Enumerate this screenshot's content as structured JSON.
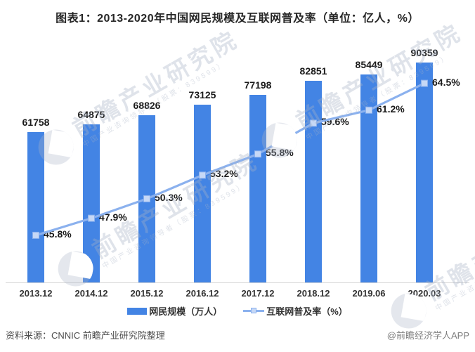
{
  "chart_data": {
    "type": "combo",
    "title": "图表1：2013-2020年中国网民规模及互联网普及率（单位：亿人，%）",
    "categories": [
      "2013.12",
      "2014.12",
      "2015.12",
      "2016.12",
      "2017.12",
      "2018.12",
      "2019.06",
      "2020.03"
    ],
    "series": [
      {
        "name": "网民规模（万人）",
        "type": "bar",
        "values": [
          61758,
          64875,
          68826,
          73125,
          77198,
          82851,
          85449,
          90359
        ],
        "color": "#4384e4"
      },
      {
        "name": "互联网普及率（%）",
        "type": "line",
        "values": [
          45.8,
          47.9,
          50.3,
          53.2,
          55.8,
          59.6,
          61.2,
          64.5
        ],
        "value_suffix": "%",
        "color": "#8bb1ee",
        "marker": "square",
        "marker_fill": "#c6d8f6"
      }
    ],
    "bar_axis_range": [
      0,
      95000
    ],
    "line_axis_range": [
      40,
      70
    ],
    "grid": false,
    "legend_position": "bottom",
    "data_labels": true
  },
  "footer": {
    "source": "资料来源：CNNIC  前瞻产业研究院整理",
    "credit": "@前瞻经济学人APP"
  },
  "watermark": {
    "text": "前瞻产业研究院",
    "subtext": "中国产业咨询领导者（股票：839599）"
  }
}
